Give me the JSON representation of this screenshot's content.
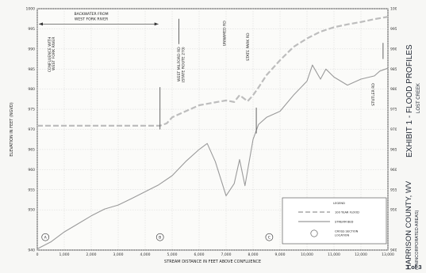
{
  "chart_data": {
    "type": "line",
    "title": "EXHIBIT 1 - FLOOD PROFILES",
    "subtitle": "LOST CREEK",
    "xlabel": "STREAM DISTANCE IN FEET ABOVE CONFLUENCE",
    "ylabel": "ELEVATION IN FEET (NGVD)",
    "xlim": [
      0,
      13000
    ],
    "ylim": [
      940,
      1000
    ],
    "x_ticks": [
      "0",
      "1,000",
      "2,000",
      "3,000",
      "4,000",
      "5,000",
      "6,000",
      "7,000",
      "8,000",
      "9,000",
      "10,000",
      "11,000",
      "12,000",
      "13,000"
    ],
    "y_ticks": [
      "940",
      "950",
      "955",
      "960",
      "965",
      "970",
      "975",
      "980",
      "985",
      "990",
      "995",
      "1000"
    ],
    "grid": true,
    "legend_position": "bottom-right",
    "legend_title": "LEGEND",
    "series": [
      {
        "name": "100 YEAR FLOOD",
        "style": "dashed",
        "color": "#bdbdbd",
        "x": [
          0,
          1000,
          2000,
          3000,
          4000,
          4550,
          4800,
          5000,
          5500,
          6000,
          6500,
          7000,
          7300,
          7500,
          7800,
          8000,
          8200,
          8500,
          9000,
          9500,
          10000,
          10500,
          11000,
          11500,
          12000,
          12500,
          13000
        ],
        "y": [
          970.9,
          970.9,
          970.9,
          970.9,
          970.9,
          970.9,
          971.5,
          973,
          974.5,
          976,
          976.6,
          977.2,
          976.8,
          978.5,
          977,
          978.5,
          980.4,
          983.5,
          987.2,
          990.5,
          992.6,
          994.3,
          995.4,
          996.1,
          996.7,
          997.4,
          998
        ]
      },
      {
        "name": "STREAM BED",
        "style": "solid",
        "color": "#9a9a9a",
        "x": [
          0,
          500,
          1000,
          1500,
          2000,
          2500,
          3000,
          3500,
          4000,
          4500,
          5000,
          5500,
          6000,
          6300,
          6600,
          7000,
          7300,
          7500,
          7700,
          8000,
          8200,
          8500,
          9000,
          9500,
          10000,
          10200,
          10500,
          10700,
          11000,
          11500,
          12000,
          12500,
          12700,
          13000
        ],
        "y": [
          940.3,
          942,
          944.5,
          946.5,
          948.5,
          950.2,
          951.2,
          952.8,
          954.5,
          956.2,
          958.5,
          962,
          965,
          966.5,
          962,
          953.5,
          956.5,
          962.5,
          956,
          967.5,
          971.2,
          973,
          974.5,
          978.5,
          982,
          986,
          982.5,
          985,
          983,
          981,
          982.5,
          983.3,
          984.5,
          985.2
        ]
      }
    ],
    "markers": [
      {
        "label": "A",
        "x": 300,
        "y": 943.2
      },
      {
        "label": "B",
        "x": 4550,
        "y": 943.2
      },
      {
        "label": "C",
        "x": 8600,
        "y": 943.2
      }
    ],
    "cross_sections": [
      {
        "x": 4550,
        "y_from": 970,
        "y_to": 980.5
      },
      {
        "x": 8120,
        "y_from": 969,
        "y_to": 975.4
      },
      {
        "x": 12820,
        "y_from": 987.5,
        "y_to": 991.5
      },
      {
        "x": 5250,
        "y_from": 991.2,
        "y_to": 997.5
      }
    ],
    "annotations": [
      {
        "text": "BACKWATER FROM",
        "x": 2000,
        "y": 998.4
      },
      {
        "text": "WEST FORK RIVER",
        "x": 2000,
        "y": 997.1
      }
    ],
    "vertical_labels": [
      {
        "lines": [
          "CONFLUENCE WITH",
          "WEST FORK RIVER"
        ],
        "x": 500,
        "y_top": 993
      },
      {
        "lines": [
          "WEST MILFORD RD",
          "(STATE ROUTE 270)"
        ],
        "x": 5300,
        "y_top": 990.5
      },
      {
        "lines": [
          "UNNAMED RD"
        ],
        "x": 6980,
        "y_top": 997
      },
      {
        "lines": [
          "STATE PARK RD"
        ],
        "x": 7850,
        "y_top": 994
      },
      {
        "lines": [
          "STUTLER RD"
        ],
        "x": 12500,
        "y_top": 981.5
      }
    ],
    "legend_entries": [
      "100 YEAR FLOOD",
      "STREAM BED",
      "CROSS SECTION",
      "LOCATION"
    ]
  },
  "title_block": {
    "title": "EXHIBIT 1 - FLOOD PROFILES",
    "stream": "LOST CREEK",
    "county": "HARRISON COUNTY, WV",
    "area": "(UNINCORPORATED AREAS)",
    "sheet": "1 of 3"
  }
}
